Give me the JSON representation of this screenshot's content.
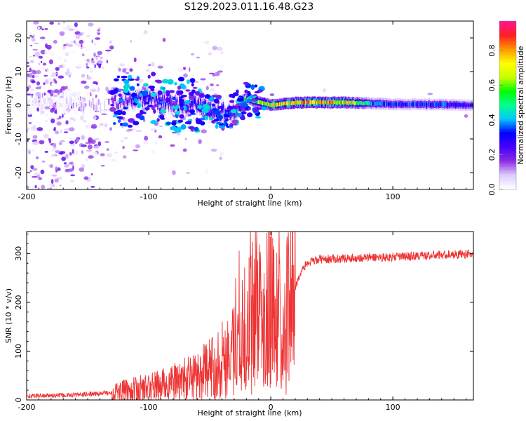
{
  "title": "S129.2023.011.16.48.G23",
  "chart_data": [
    {
      "type": "heatmap",
      "xlabel": "Height of straight line (km)",
      "ylabel": "Frequency (Hz)",
      "xlim": [
        -200,
        166
      ],
      "ylim": [
        -25,
        25
      ],
      "x_ticks": [
        -200,
        -100,
        0,
        100
      ],
      "y_ticks": [
        -20,
        -10,
        0,
        10,
        20
      ],
      "colorbar": {
        "label": "Normalized spectral amplitude",
        "range": [
          0,
          0.97
        ],
        "ticks": [
          "0.0",
          "0.2",
          "0.4",
          "0.6",
          "0.8"
        ],
        "colormap": [
          "#ffffff",
          "#dcc8ff",
          "#8a2be2",
          "#4400ff",
          "#0000ff",
          "#00c8ff",
          "#00ff90",
          "#00ff00",
          "#c8ff00",
          "#ffff00",
          "#ff9900",
          "#ff2020",
          "#ff1493"
        ]
      },
      "centre_frequency_hz": [
        [
          -200,
          0
        ],
        [
          -120,
          1
        ],
        [
          -100,
          2
        ],
        [
          -80,
          0
        ],
        [
          -60,
          0
        ],
        [
          -45,
          -2
        ],
        [
          -30,
          -2
        ],
        [
          -20,
          2
        ],
        [
          -10,
          1
        ],
        [
          0,
          0
        ],
        [
          20,
          0.8
        ],
        [
          60,
          0.8
        ],
        [
          100,
          0.3
        ],
        [
          140,
          0.2
        ],
        [
          166,
          0
        ]
      ],
      "peak_amplitude": [
        [
          -200,
          0.05
        ],
        [
          -150,
          0.1
        ],
        [
          -120,
          0.2
        ],
        [
          -100,
          0.3
        ],
        [
          -80,
          0.3
        ],
        [
          -60,
          0.3
        ],
        [
          -40,
          0.35
        ],
        [
          -25,
          0.45
        ],
        [
          -10,
          0.7
        ],
        [
          10,
          0.8
        ],
        [
          30,
          0.85
        ],
        [
          60,
          0.8
        ],
        [
          80,
          0.45
        ],
        [
          100,
          0.35
        ],
        [
          140,
          0.35
        ],
        [
          166,
          0.3
        ]
      ]
    },
    {
      "type": "line",
      "xlabel": "Height of straight line (km)",
      "ylabel": "SNR (10 * v/v)",
      "xlim": [
        -200,
        166
      ],
      "ylim": [
        0,
        345
      ],
      "x_ticks": [
        -200,
        -100,
        0,
        100
      ],
      "y_ticks": [
        0,
        100,
        200,
        300
      ],
      "color": "#ee3333",
      "series": [
        {
          "trend": [
            [
              -200,
              8
            ],
            [
              -160,
              10
            ],
            [
              -140,
              13
            ],
            [
              -120,
              18
            ],
            [
              -100,
              25
            ],
            [
              -80,
              35
            ],
            [
              -60,
              50
            ],
            [
              -45,
              70
            ],
            [
              -35,
              95
            ],
            [
              -25,
              130
            ],
            [
              -15,
              170
            ],
            [
              -5,
              195
            ],
            [
              0,
              190
            ],
            [
              8,
              170
            ],
            [
              15,
              190
            ],
            [
              20,
              230
            ],
            [
              25,
              265
            ],
            [
              30,
              280
            ],
            [
              40,
              288
            ],
            [
              60,
              290
            ],
            [
              80,
              292
            ],
            [
              100,
              293
            ],
            [
              130,
              296
            ],
            [
              166,
              300
            ]
          ]
        }
      ]
    }
  ]
}
